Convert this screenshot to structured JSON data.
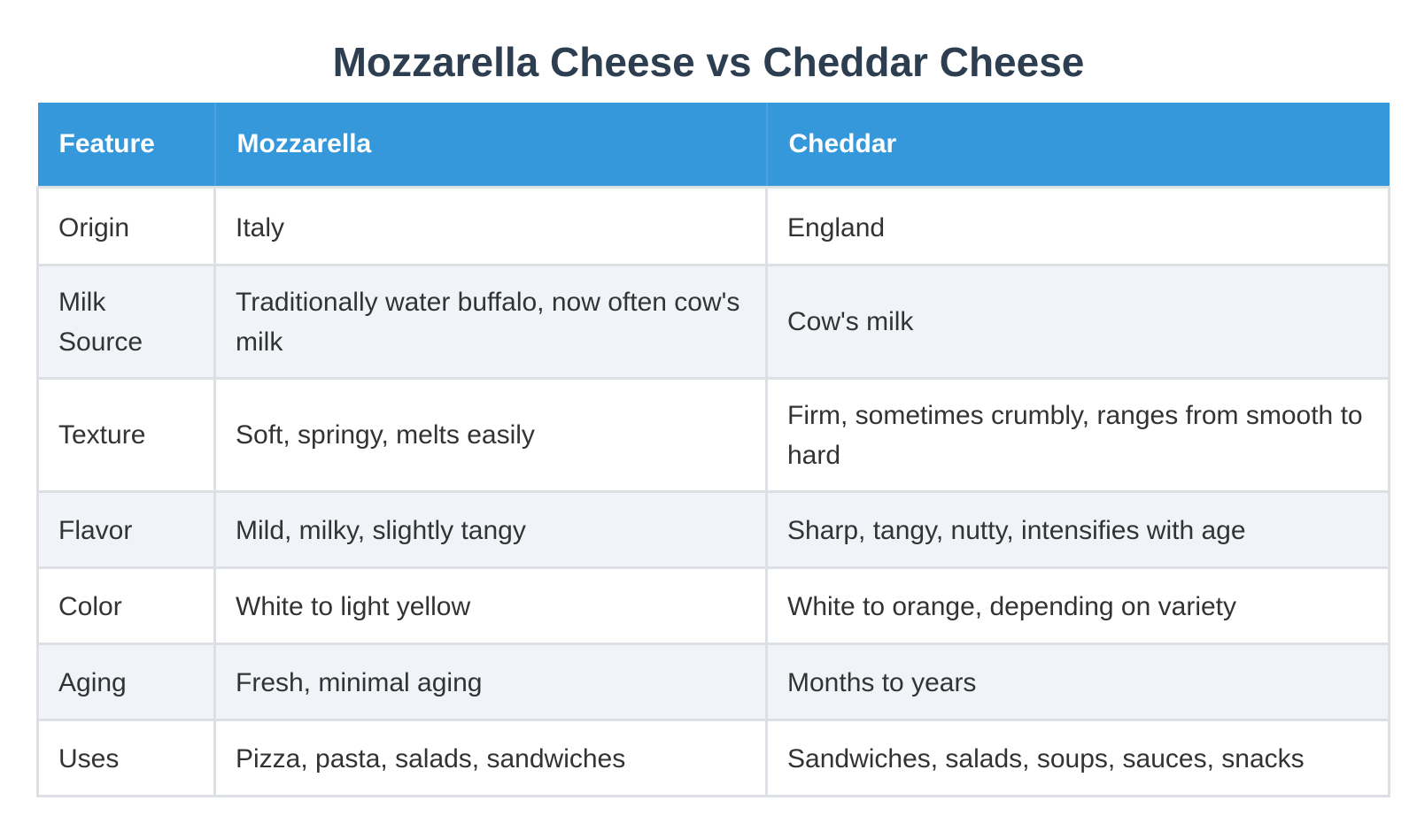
{
  "title": "Mozzarella Cheese vs Cheddar Cheese",
  "colors": {
    "title": "#2c3e50",
    "header_bg": "#3498db",
    "header_text": "#ffffff",
    "stripe_bg": "#f0f4f9",
    "border": "#dcdfe3"
  },
  "table": {
    "headers": [
      "Feature",
      "Mozzarella",
      "Cheddar"
    ],
    "rows": [
      [
        "Origin",
        "Italy",
        "England"
      ],
      [
        "Milk Source",
        "Traditionally water buffalo, now often cow's milk",
        "Cow's milk"
      ],
      [
        "Texture",
        "Soft, springy, melts easily",
        "Firm, sometimes crumbly, ranges from smooth to hard"
      ],
      [
        "Flavor",
        "Mild, milky, slightly tangy",
        "Sharp, tangy, nutty, intensifies with age"
      ],
      [
        "Color",
        "White to light yellow",
        "White to orange, depending on variety"
      ],
      [
        "Aging",
        "Fresh, minimal aging",
        "Months to years"
      ],
      [
        "Uses",
        "Pizza, pasta, salads, sandwiches",
        "Sandwiches, salads, soups, sauces, snacks"
      ]
    ]
  }
}
